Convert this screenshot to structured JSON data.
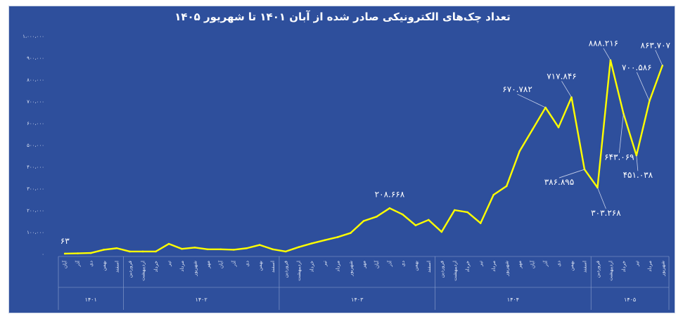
{
  "chart_data": {
    "type": "line",
    "title": "تعداد چک‌های الکترونیکی صادر شده از آبان ۱۴۰۱ تا شهریور ۱۴۰۵",
    "xlabel": "",
    "ylabel": "",
    "ylim": [
      0,
      1000000
    ],
    "yticks": [
      "۰",
      "۱۰۰،۰۰۰",
      "۲۰۰،۰۰۰",
      "۳۰۰،۰۰۰",
      "۴۰۰،۰۰۰",
      "۵۰۰،۰۰۰",
      "۶۰۰،۰۰۰",
      "۷۰۰،۰۰۰",
      "۸۰۰،۰۰۰",
      "۹۰۰،۰۰۰",
      "۱،۰۰۰،۰۰۰"
    ],
    "grid": false,
    "line_color": "#ffff00",
    "categories": [
      "آبان",
      "آذر",
      "دی",
      "بهمن",
      "اسفند",
      "فروردین",
      "اردیبهشت",
      "خرداد",
      "تیر",
      "مرداد",
      "شهریور",
      "مهر",
      "آبان",
      "آذر",
      "دی",
      "بهمن",
      "اسفند",
      "فروردین",
      "اردیبهشت",
      "خرداد",
      "تیر",
      "مرداد",
      "شهریور",
      "مهر",
      "آبان",
      "آذر",
      "دی",
      "بهمن",
      "اسفند",
      "فروردین",
      "اردیبهشت",
      "خرداد",
      "تیر",
      "مرداد",
      "شهریور",
      "مهر",
      "آبان",
      "آذر",
      "دی",
      "بهمن",
      "اسفند",
      "فروردین",
      "اردیبهشت",
      "خرداد",
      "تیر",
      "مرداد",
      "شهریور"
    ],
    "groups": [
      {
        "label": "۱۴۰۱",
        "count": 5
      },
      {
        "label": "۱۴۰۲",
        "count": 12
      },
      {
        "label": "۱۴۰۳",
        "count": 12
      },
      {
        "label": "۱۴۰۴",
        "count": 12
      },
      {
        "label": "۱۴۰۵",
        "count": 6
      }
    ],
    "values": [
      63,
      1500,
      3000,
      18000,
      25000,
      10000,
      10000,
      10000,
      45000,
      22000,
      28000,
      20000,
      20000,
      18000,
      25000,
      40000,
      20000,
      10000,
      30000,
      47000,
      62000,
      76000,
      95000,
      150000,
      170000,
      208668,
      180000,
      130000,
      155000,
      100000,
      200000,
      190000,
      140000,
      270000,
      310000,
      470000,
      570000,
      670782,
      580000,
      717846,
      386895,
      303268,
      888216,
      643069,
      451038,
      700586,
      863707
    ],
    "data_labels": [
      {
        "index": 0,
        "text": "۶۳"
      },
      {
        "index": 25,
        "text": "۲۰۸.۶۶۸"
      },
      {
        "index": 37,
        "text": "۶۷۰.۷۸۲"
      },
      {
        "index": 39,
        "text": "۷۱۷.۸۴۶"
      },
      {
        "index": 40,
        "text": "۳۸۶.۸۹۵"
      },
      {
        "index": 41,
        "text": "۳۰۳.۲۶۸"
      },
      {
        "index": 42,
        "text": "۸۸۸.۲۱۶"
      },
      {
        "index": 43,
        "text": "۶۴۳.۰۶۹"
      },
      {
        "index": 44,
        "text": "۴۵۱.۰۳۸"
      },
      {
        "index": 45,
        "text": "۷۰۰.۵۸۶"
      },
      {
        "index": 46,
        "text": "۸۶۳.۷۰۷"
      }
    ]
  }
}
